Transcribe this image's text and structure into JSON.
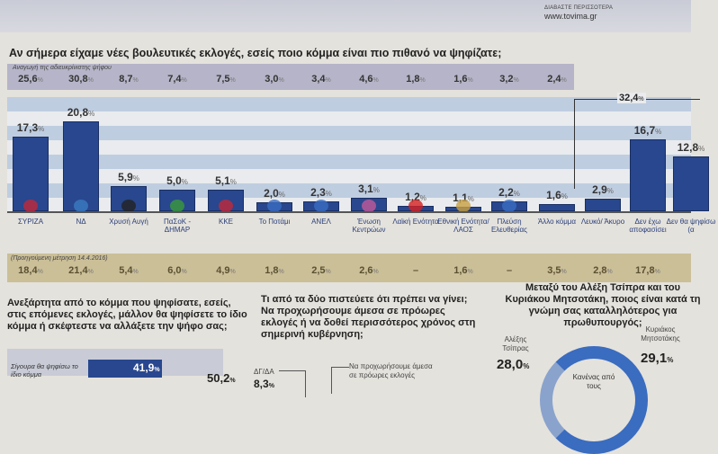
{
  "header": {
    "more_link": "ΔΙΑΒΑΣΤΕ ΠΕΡΙΣΣΟΤΕΡΑ",
    "site": "www.tovima.gr"
  },
  "chart_data": {
    "type": "bar",
    "title": "Αν σήμερα είχαμε νέες βουλευτικές εκλογές, εσείς ποιο κόμμα είναι πιο πιθανό να ψηφίζατε;",
    "adjusted_label": "Αναγωγή της αδιευκρίνιστης ψήφου",
    "previous_label": "(Προηγούμενη μέτρηση 14.4.2016)",
    "unit": "%",
    "categories": [
      "ΣΥΡΙΖΑ",
      "ΝΔ",
      "Χρυσή Αυγή",
      "ΠαΣοΚ - ΔΗΜΑΡ",
      "ΚΚΕ",
      "Το Ποτάμι",
      "ΑΝΕΛ",
      "Ένωση Κεντρώων",
      "Λαϊκή Ενότητα",
      "Εθνική Ενότητα/ ΛΑΟΣ",
      "Πλεύση Ελευθερίας",
      "Άλλο κόμμα",
      "Λευκό/ Άκυρο",
      "Δεν έχω αποφασίσει",
      "Δεν θα ψηφίσω (α"
    ],
    "values": [
      17.3,
      20.8,
      5.9,
      5.0,
      5.1,
      2.0,
      2.3,
      3.1,
      1.2,
      1.1,
      2.2,
      1.6,
      2.9,
      16.7,
      12.8
    ],
    "value_labels": [
      "17,3",
      "20,8",
      "5,9",
      "5,0",
      "5,1",
      "2,0",
      "2,3",
      "3,1",
      "1,2",
      "1,1",
      "2,2",
      "1,6",
      "2,9",
      "16,7",
      "12,8"
    ],
    "adjusted": [
      "25,6",
      "30,8",
      "8,7",
      "7,4",
      "7,5",
      "3,0",
      "3,4",
      "4,6",
      "1,8",
      "1,6",
      "3,2",
      "2,4"
    ],
    "previous": [
      "18,4",
      "21,4",
      "5,4",
      "6,0",
      "4,9",
      "1,8",
      "2,5",
      "2,6",
      "–",
      "1,6",
      "–",
      "3,5",
      "2,8",
      "17,8"
    ],
    "bracket_total": "32,4",
    "colors": {
      "bar": "#28478e",
      "adjusted_band": "#b5b4c8",
      "previous_band": "#cbbf98"
    }
  },
  "q1": {
    "text": "Ανεξάρτητα από το κόμμα που ψηφίσατε, εσείς, στις επόμενες εκλογές, μάλλον θα ψηφίσετε το ίδιο κόμμα ή σκέφτεστε να αλλάξετε την ψήφο σας;",
    "option": "Σίγουρα θα ψηφίσω το ίδιο κόμμα",
    "value": "41,9",
    "value2": "50,2"
  },
  "q2": {
    "text": "Τι από τα δύο πιστεύετε ότι πρέπει να γίνει; Να προχωρήσουμε άμεσα σε πρόωρες εκλογές ή να δοθεί περισσότερος χρόνος στη σημερινή κυβέρνηση;",
    "dg_label": "ΔΓ/ΔΑ",
    "dg_value": "8,3",
    "option": "Να προχωρήσουμε άμεσα σε πρόωρες εκλογές"
  },
  "q3": {
    "text": "Μεταξύ του Αλέξη Τσίπρα και του Κυριάκου Μητσοτάκη, ποιος είναι κατά τη γνώμη σας καταλληλότερος για πρωθυπουργός;",
    "tsipras_label": "Αλέξης Τσίπρας",
    "tsipras_value": "28,0",
    "mitsotakis_label": "Κυριάκος Μητσοτάκης",
    "mitsotakis_value": "29,1",
    "none_label": "Κανένας από τους"
  },
  "pct": "%"
}
